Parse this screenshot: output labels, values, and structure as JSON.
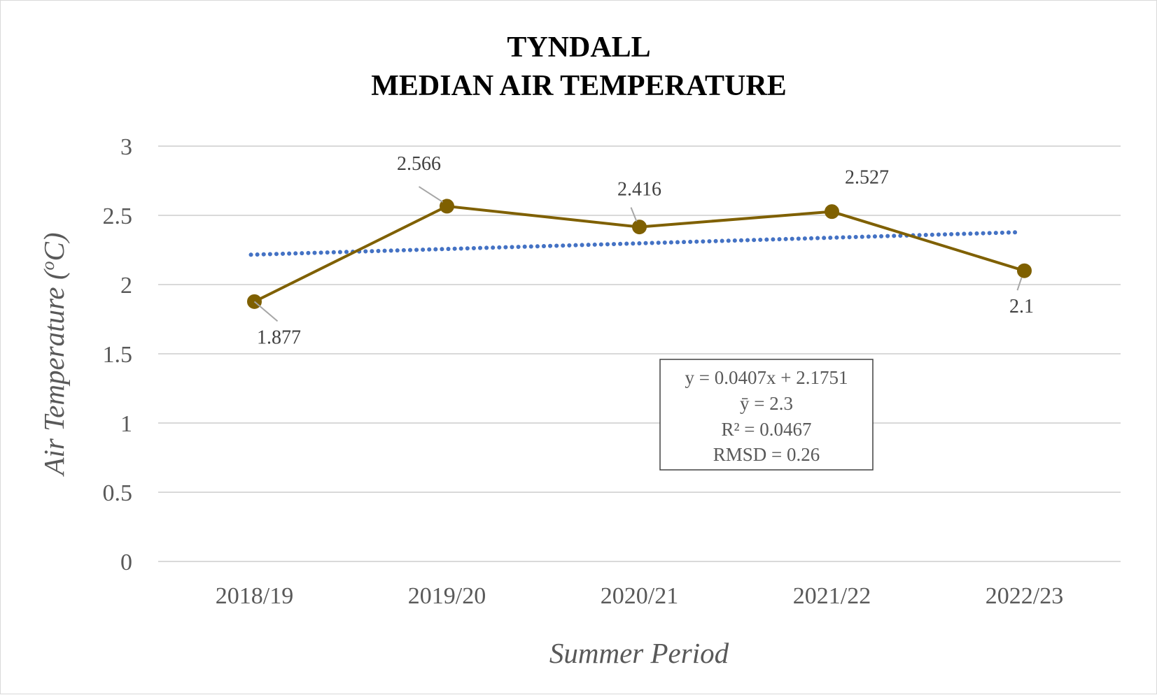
{
  "chart_data": {
    "type": "line",
    "title_lines": [
      "TYNDALL",
      "MEDIAN AIR TEMPERATURE"
    ],
    "xlabel": "Summer Period",
    "ylabel": "Air Temperature (ºC)",
    "ylabel_parts": {
      "before": "Air Temperature (",
      "superscript": "o",
      "unit": "C",
      "after": ")"
    },
    "categories": [
      "2018/19",
      "2019/20",
      "2020/21",
      "2021/22",
      "2022/23"
    ],
    "series": [
      {
        "values": [
          1.877,
          2.566,
          2.416,
          2.527,
          2.1
        ],
        "data_labels": [
          "1.877",
          "2.566",
          "2.416",
          "2.527",
          "2.1"
        ],
        "color": "#7f6000",
        "marker": "circle"
      }
    ],
    "trendline": {
      "type": "linear",
      "slope": 0.0407,
      "intercept": 2.1751,
      "style": "dotted",
      "color": "#4472c4"
    },
    "stats_box": [
      "y = 0.0407x + 2.1751",
      "ȳ = 2.3",
      "R² = 0.0467",
      "RMSD = 0.26"
    ],
    "ylim": [
      0,
      3
    ],
    "yticks": [
      "0",
      "0.5",
      "1",
      "1.5",
      "2",
      "2.5",
      "3"
    ],
    "grid": true,
    "legend": "none"
  }
}
